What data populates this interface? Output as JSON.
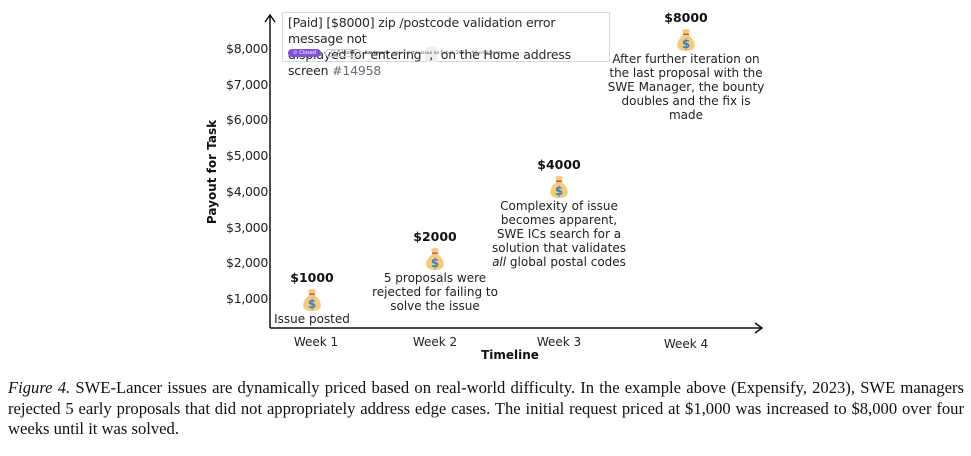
{
  "issue_card": {
    "title_part1": "[Paid] [$8000] zip /postcode validation error message not",
    "title_part2": "displayed for entering",
    "code_snippet": ",",
    "title_part3": "on the Home address screen",
    "issue_number": "#14958",
    "status_badge": "Closed",
    "tasks_badge": "6 tasks",
    "author": "kavimuru",
    "meta_text": "opened this issue on Feb 8, 2023 · 93 comments"
  },
  "chart_data": {
    "type": "timeline",
    "title": "",
    "xlabel": "Timeline",
    "ylabel": "Payout for Task",
    "categories": [
      "Week 1",
      "Week 2",
      "Week 3",
      "Week 4"
    ],
    "yticks": [
      "$1,000",
      "$2,000",
      "$3,000",
      "$4,000",
      "$5,000",
      "$6,000",
      "$7,000",
      "$8,000"
    ],
    "ytick_values": [
      1000,
      2000,
      3000,
      4000,
      5000,
      6000,
      7000,
      8000
    ],
    "ylim": [
      0,
      8500
    ],
    "grid": false,
    "events": [
      {
        "week": "Week 1",
        "value": 1000,
        "amount_label": "$1000",
        "icon": "money-bag-icon",
        "description": [
          "Issue posted"
        ]
      },
      {
        "week": "Week 2",
        "value": 2000,
        "amount_label": "$2000",
        "icon": "money-bag-icon",
        "description": [
          "5 proposals were",
          "rejected for failing to",
          "solve the issue"
        ]
      },
      {
        "week": "Week 3",
        "value": 4000,
        "amount_label": "$4000",
        "icon": "money-bag-icon",
        "description": [
          "Complexity of issue",
          "becomes apparent,",
          "SWE ICs search for a",
          "solution that validates",
          "all global postal codes"
        ],
        "italic_word": "all"
      },
      {
        "week": "Week 4",
        "value": 8000,
        "amount_label": "$8000",
        "icon": "money-bag-icon",
        "description": [
          "After further iteration on",
          "the last proposal with the",
          "SWE Manager, the bounty",
          "doubles and the fix is",
          "made"
        ]
      }
    ]
  },
  "caption": {
    "label": "Figure 4.",
    "text": " SWE-Lancer issues are dynamically priced based on real-world difficulty.  In the example above (Expensify, 2023), SWE managers rejected 5 early proposals that did not appropriately address edge cases. The initial request priced at $1,000 was increased to $8,000 over four weeks until it was solved."
  },
  "colors": {
    "bag_fill": "#f5cb7a",
    "bag_tie": "#d9534f",
    "bag_symbol": "#3a7fc4",
    "closed_badge": "#8250df"
  }
}
